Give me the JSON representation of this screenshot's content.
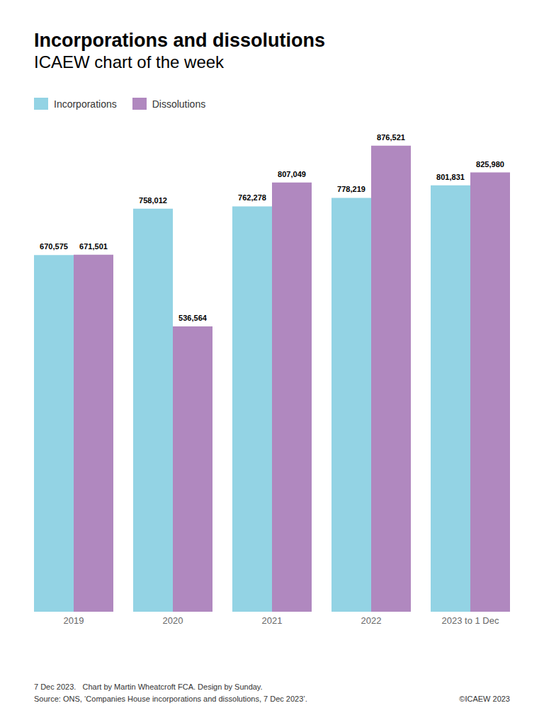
{
  "chart_data": {
    "type": "bar",
    "title": "Incorporations and dissolutions",
    "subtitle": "ICAEW chart of the week",
    "categories": [
      "2019",
      "2020",
      "2021",
      "2022",
      "2023 to 1 Dec"
    ],
    "series": [
      {
        "name": "Incorporations",
        "color": "#93d3e4",
        "values": [
          670575,
          758012,
          762278,
          778219,
          801831
        ],
        "value_labels": [
          "670,575",
          "758,012",
          "762,278",
          "778,219",
          "801,831"
        ]
      },
      {
        "name": "Dissolutions",
        "color": "#b088bf",
        "values": [
          671501,
          536564,
          807049,
          876521,
          825980
        ],
        "value_labels": [
          "671,501",
          "536,564",
          "807,049",
          "876,521",
          "825,980"
        ]
      }
    ],
    "ylim": [
      0,
      900000
    ],
    "grid": false,
    "legend": "top left",
    "data_labels": true,
    "tick_labels": "x",
    "footer": {
      "credit": "7 Dec 2023.   Chart by Martin Wheatcroft FCA. Design by Sunday.",
      "source": "Source: ONS, ‘Companies House incorporations and dissolutions, 7 Dec 2023’.",
      "copyright": "©ICAEW 2023"
    }
  }
}
